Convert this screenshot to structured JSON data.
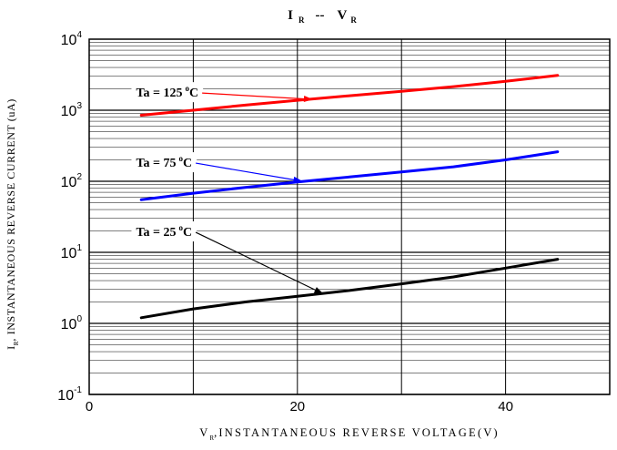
{
  "chart_data": {
    "type": "line",
    "title": {
      "main": "I",
      "main_sub": "R",
      "sep": "--",
      "second": "V",
      "second_sub": "R"
    },
    "xlabel": {
      "main": "V",
      "sub": "R",
      "rest": ",INSTANTANEOUS REVERSE VOLTAGE(V)"
    },
    "ylabel": {
      "main": "I",
      "sub": "R",
      "rest": ", INSTANTANEOUS REVERSE CURRENT (uA)"
    },
    "xlim": [
      0,
      50
    ],
    "ylim": [
      0.1,
      10000
    ],
    "yscale": "log",
    "grid": true,
    "x_ticks": [
      {
        "value": 0,
        "label": "0"
      },
      {
        "value": 20,
        "label": "20"
      },
      {
        "value": 40,
        "label": "40"
      }
    ],
    "y_ticks": [
      {
        "value": 10000,
        "base": "10",
        "exp": "4"
      },
      {
        "value": 1000,
        "base": "10",
        "exp": "3"
      },
      {
        "value": 100,
        "base": "10",
        "exp": "2"
      },
      {
        "value": 10,
        "base": "10",
        "exp": "1"
      },
      {
        "value": 1,
        "base": "10",
        "exp": "0"
      },
      {
        "value": 0.1,
        "base": "10",
        "exp": "-1"
      }
    ],
    "series": [
      {
        "color": "#ff0000",
        "x": [
          5,
          10,
          15,
          20,
          25,
          30,
          35,
          40,
          45
        ],
        "y": [
          850,
          1000,
          1180,
          1380,
          1600,
          1850,
          2150,
          2550,
          3100
        ]
      },
      {
        "color": "#0000ff",
        "x": [
          5,
          10,
          15,
          20,
          25,
          30,
          35,
          40,
          45
        ],
        "y": [
          55,
          68,
          82,
          98,
          115,
          135,
          160,
          200,
          260
        ]
      },
      {
        "color": "#000000",
        "x": [
          5,
          10,
          15,
          20,
          25,
          30,
          35,
          40,
          45
        ],
        "y": [
          1.2,
          1.6,
          2.0,
          2.4,
          2.9,
          3.6,
          4.5,
          6.0,
          8.0
        ]
      }
    ],
    "annotations": [
      {
        "text": "Ta = 125",
        "sup": "o",
        "unit": "C",
        "color": "#ff0000",
        "label_x": 4.5,
        "label_y": 1550,
        "arrow_x": 21.5,
        "arrow_y": 1420
      },
      {
        "text": "Ta = 75",
        "sup": "o",
        "unit": "C",
        "color": "#0000ff",
        "label_x": 4.5,
        "label_y": 160,
        "arrow_x": 20.5,
        "arrow_y": 100
      },
      {
        "text": "Ta = 25",
        "sup": "o",
        "unit": "C",
        "color": "#000000",
        "label_x": 4.5,
        "label_y": 17,
        "arrow_x": 22.5,
        "arrow_y": 2.6
      }
    ]
  }
}
